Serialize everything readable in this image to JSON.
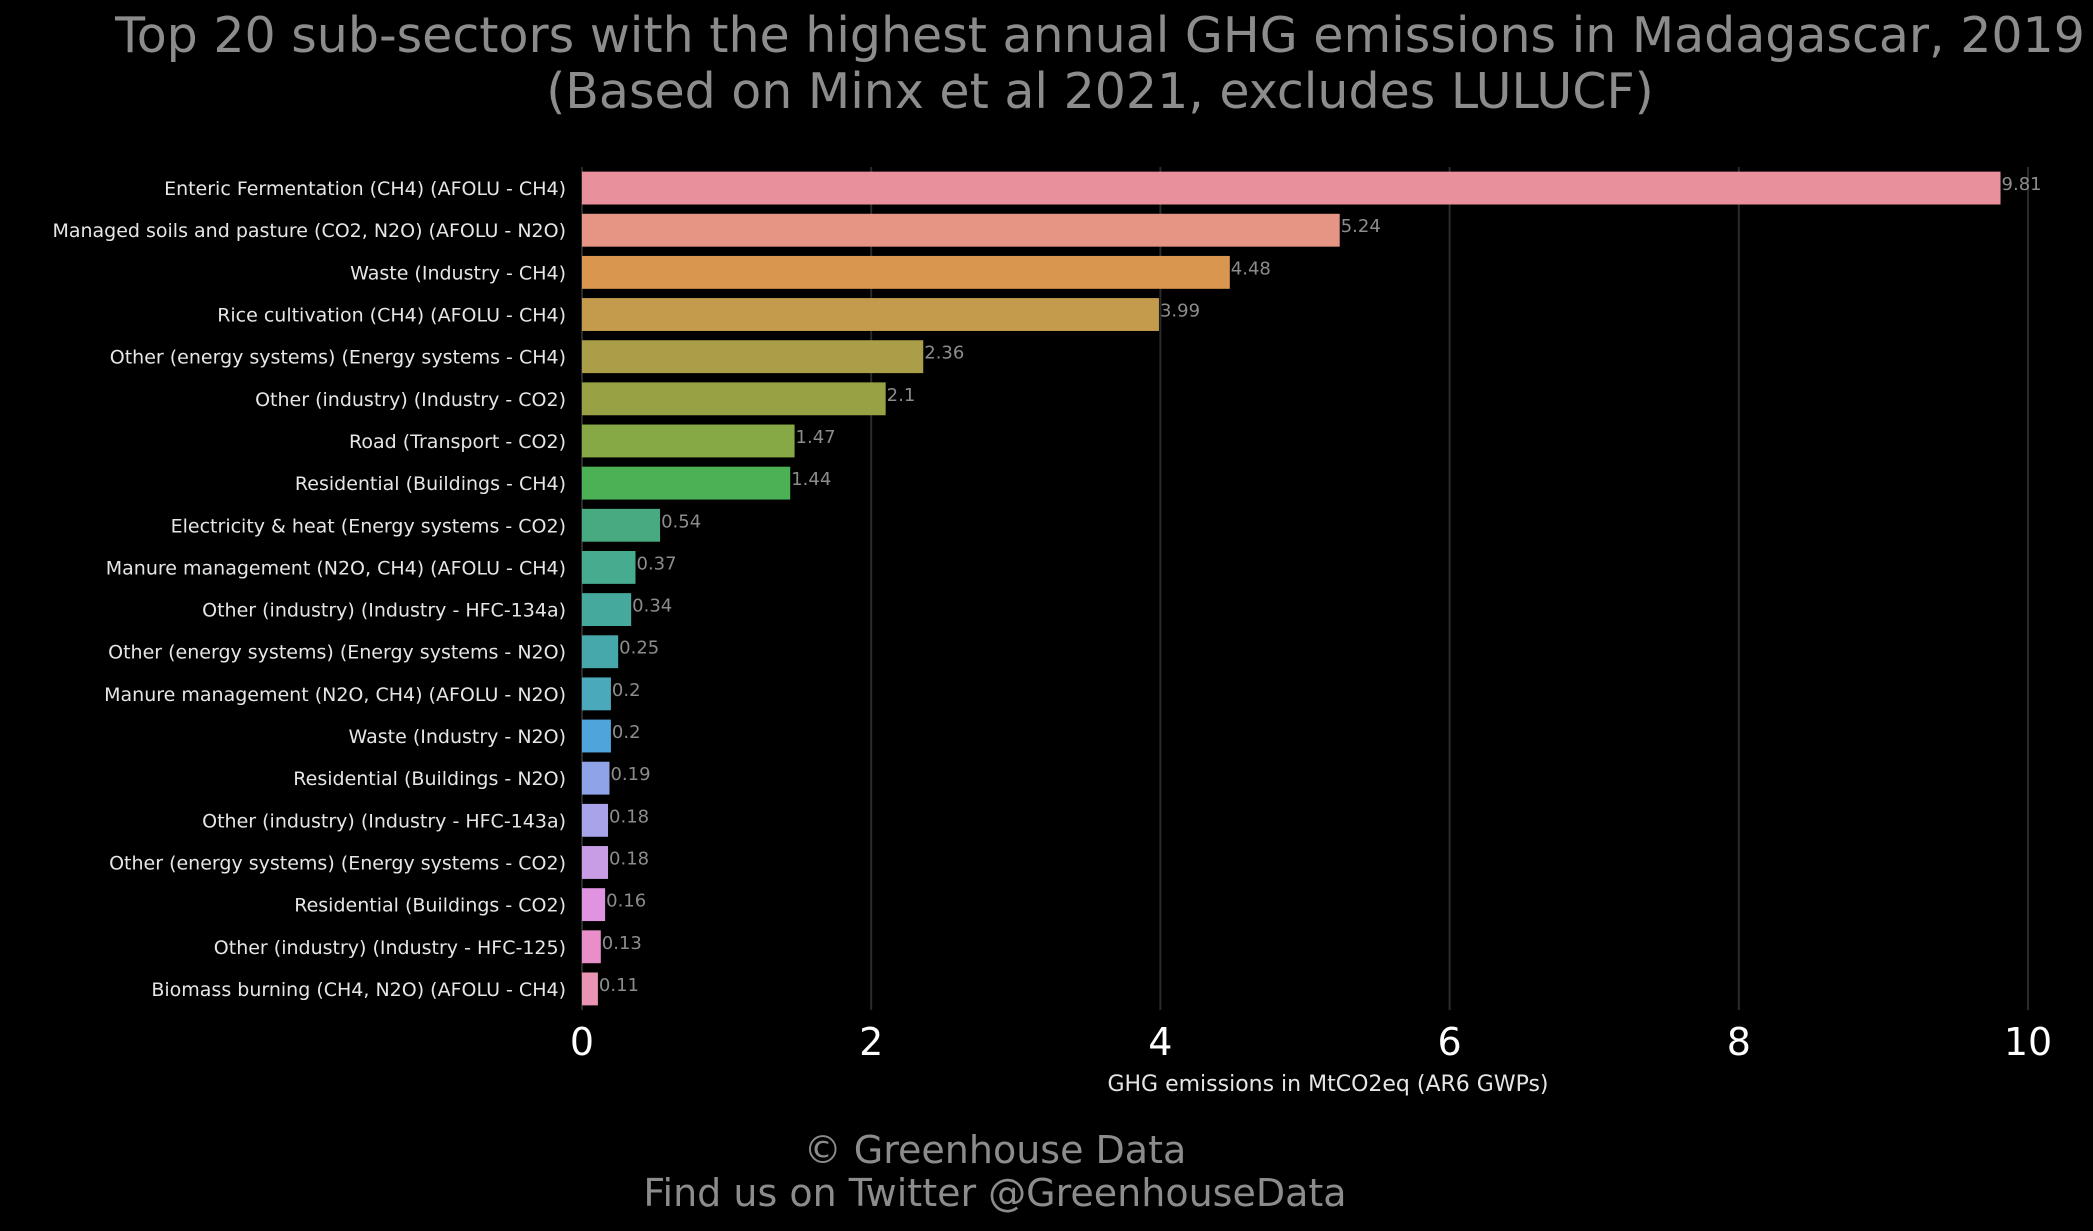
{
  "chart_data": {
    "type": "bar",
    "orientation": "horizontal",
    "title": "Top 20 sub-sectors with the highest annual GHG emissions in Madagascar, 2019",
    "subtitle": "(Based on Minx et al 2021, excludes LULUCF)",
    "xlabel": "GHG emissions in MtCO2eq (AR6 GWPs)",
    "ylabel": "",
    "xlim": [
      0,
      10
    ],
    "x_ticks": [
      "0",
      "2",
      "4",
      "6",
      "8",
      "10"
    ],
    "grid": "vertical",
    "categories": [
      "Enteric Fermentation (CH4) (AFOLU - CH4)",
      "Managed soils and pasture (CO2, N2O) (AFOLU - N2O)",
      "Waste (Industry - CH4)",
      "Rice cultivation (CH4) (AFOLU - CH4)",
      "Other (energy systems) (Energy systems - CH4)",
      "Other (industry) (Industry - CO2)",
      "Road (Transport - CO2)",
      "Residential (Buildings - CH4)",
      "Electricity & heat (Energy systems - CO2)",
      "Manure management (N2O, CH4) (AFOLU - CH4)",
      "Other (industry) (Industry - HFC-134a)",
      "Other (energy systems) (Energy systems - N2O)",
      "Manure management (N2O, CH4) (AFOLU - N2O)",
      "Waste (Industry - N2O)",
      "Residential (Buildings - N2O)",
      "Other (industry) (Industry - HFC-143a)",
      "Other (energy systems) (Energy systems - CO2)",
      "Residential (Buildings - CO2)",
      "Other (industry) (Industry - HFC-125)",
      "Biomass burning (CH4, N2O) (AFOLU - CH4)"
    ],
    "values": [
      9.81,
      5.24,
      4.48,
      3.99,
      2.36,
      2.1,
      1.47,
      1.44,
      0.54,
      0.37,
      0.34,
      0.25,
      0.2,
      0.2,
      0.19,
      0.18,
      0.18,
      0.16,
      0.13,
      0.11
    ],
    "value_labels": [
      "9.81",
      "5.24",
      "4.48",
      "3.99",
      "2.36",
      "2.1",
      "1.47",
      "1.44",
      "0.54",
      "0.37",
      "0.34",
      "0.25",
      "0.2",
      "0.2",
      "0.19",
      "0.18",
      "0.18",
      "0.16",
      "0.13",
      "0.11"
    ],
    "colors": [
      "#e8919c",
      "#e69585",
      "#d9964f",
      "#c49b4d",
      "#aa9e48",
      "#99a145",
      "#86a946",
      "#4bb154",
      "#48aa80",
      "#47ab8f",
      "#46a99d",
      "#47a8ab",
      "#4aa9bb",
      "#50a4dc",
      "#8fa4e8",
      "#a9a3ea",
      "#c89de6",
      "#df93e0",
      "#e88fc9",
      "#e994b4"
    ]
  },
  "footer": {
    "copyright": "© Greenhouse Data",
    "twitter": "Find us on Twitter @GreenhouseData"
  },
  "background": "#000000"
}
